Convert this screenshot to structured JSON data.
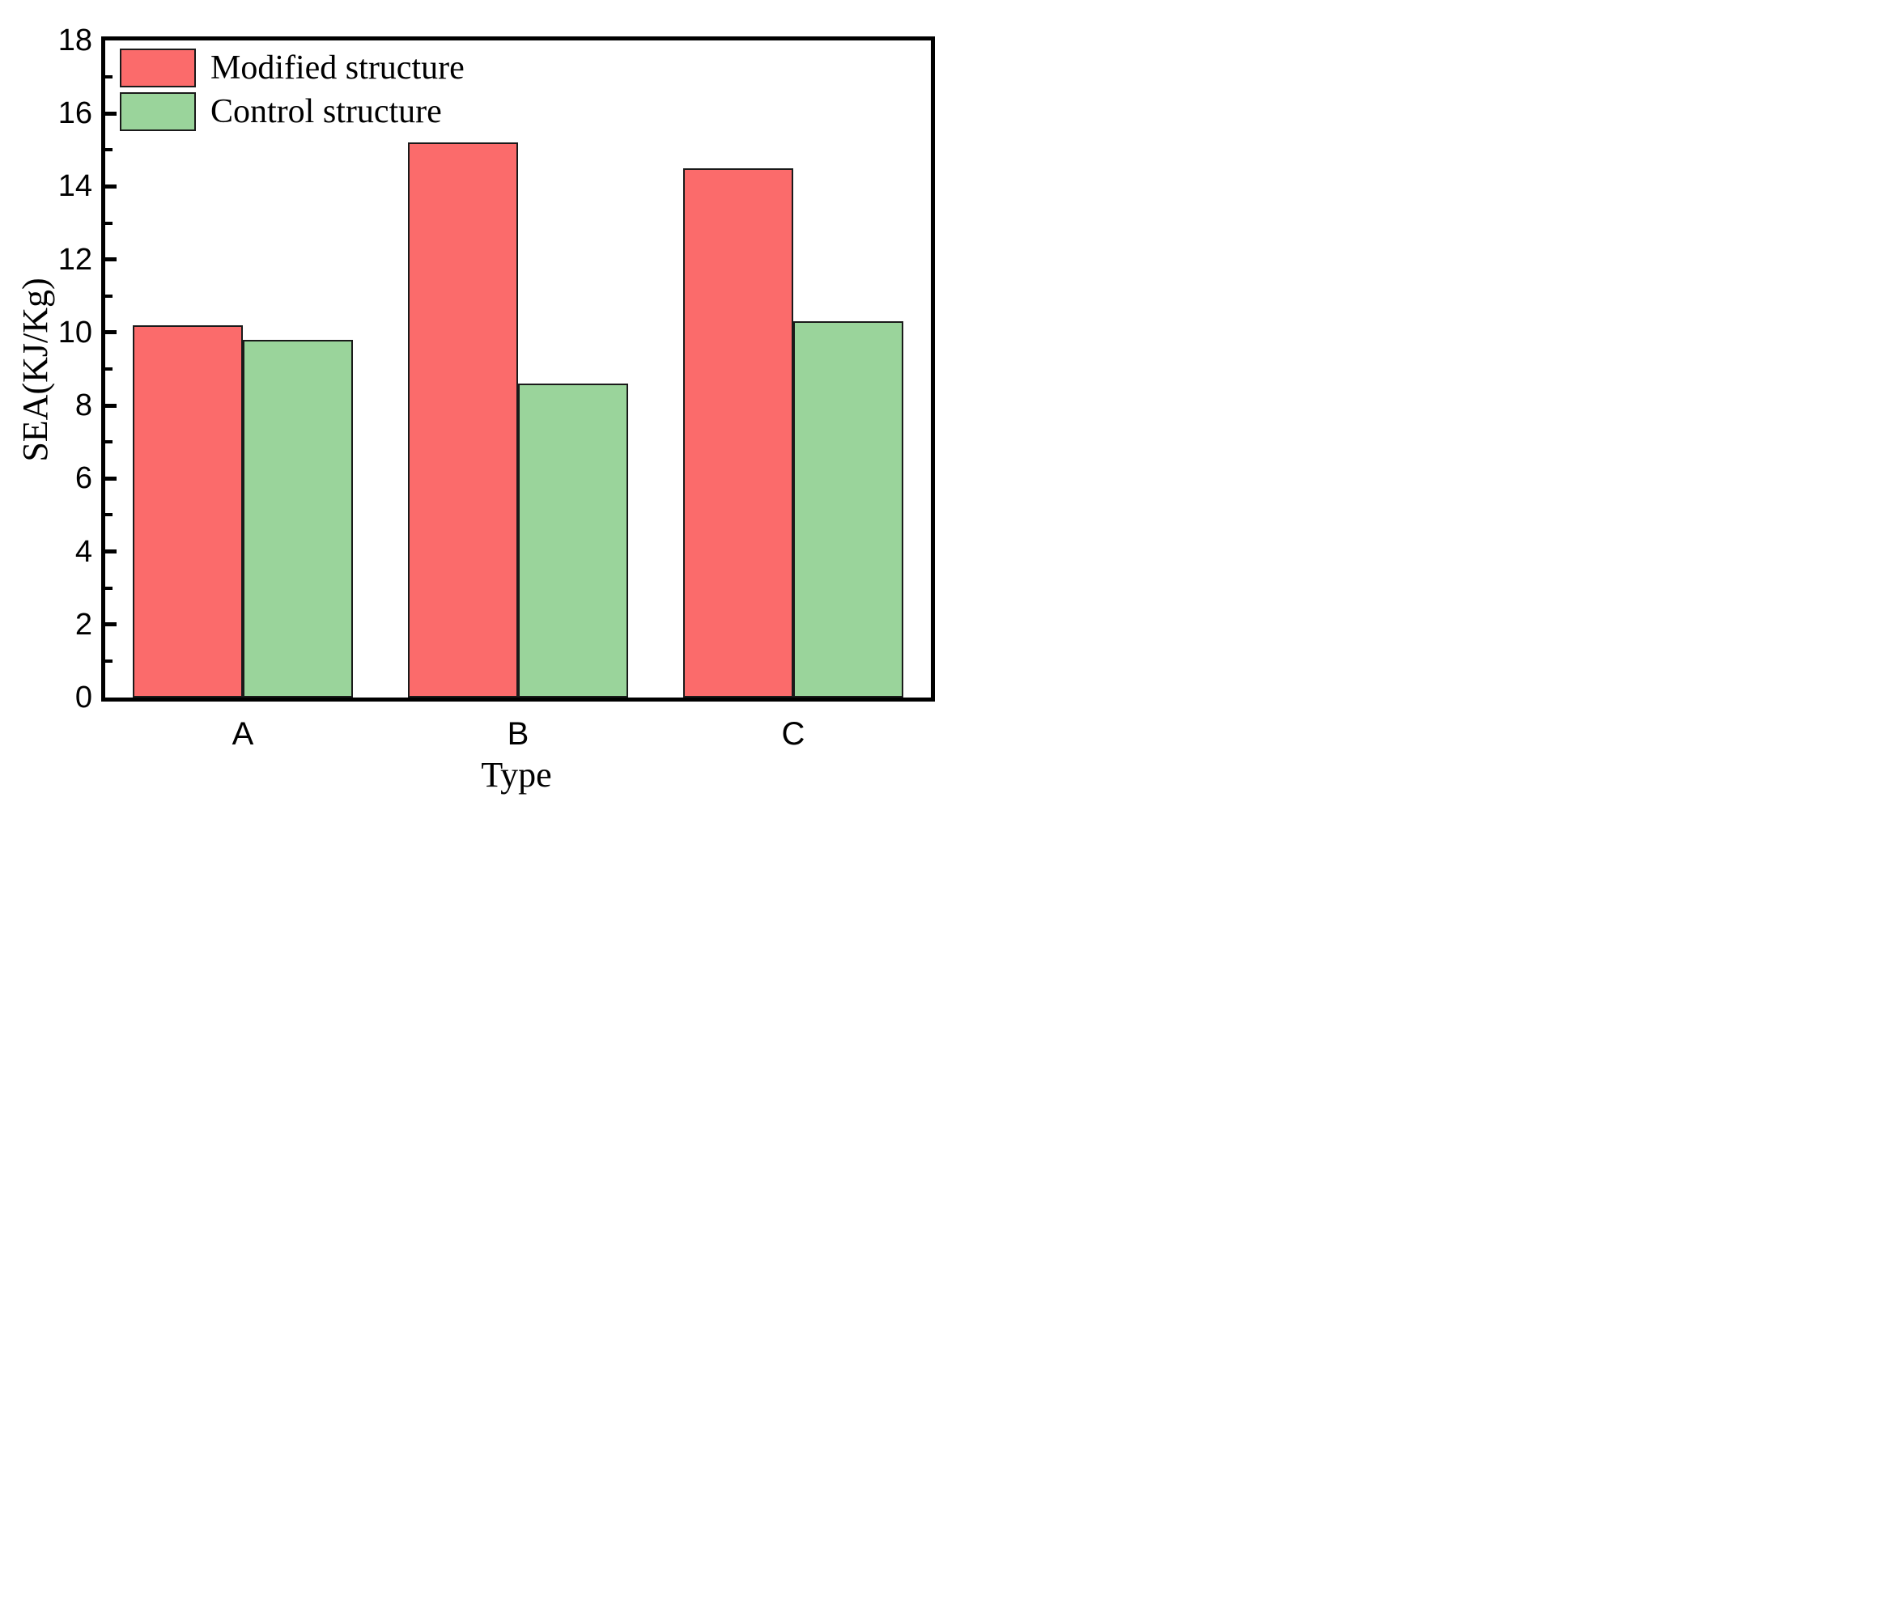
{
  "chart_data": {
    "type": "bar",
    "title": "",
    "xlabel": "Type",
    "ylabel": "SEA(KJ/Kg)",
    "categories": [
      "A",
      "B",
      "C"
    ],
    "series": [
      {
        "name": "Modified structure",
        "color": "#fb6b6b",
        "border_color": "#1a1a1a",
        "values": [
          10.2,
          15.2,
          14.5
        ]
      },
      {
        "name": "Control structure",
        "color": "#9ad49b",
        "border_color": "#1a1a1a",
        "values": [
          9.8,
          8.6,
          10.3
        ]
      }
    ],
    "ylim": [
      0,
      18
    ],
    "ytick_major_step": 2,
    "ytick_minor_step": 1,
    "ytick_labels": [
      "0",
      "2",
      "4",
      "6",
      "8",
      "10",
      "12",
      "14",
      "16",
      "18"
    ],
    "grid": false,
    "legend_position": "top-left-inside",
    "tick_direction": "in",
    "axis_color": "#000000",
    "background_color": "#ffffff"
  }
}
